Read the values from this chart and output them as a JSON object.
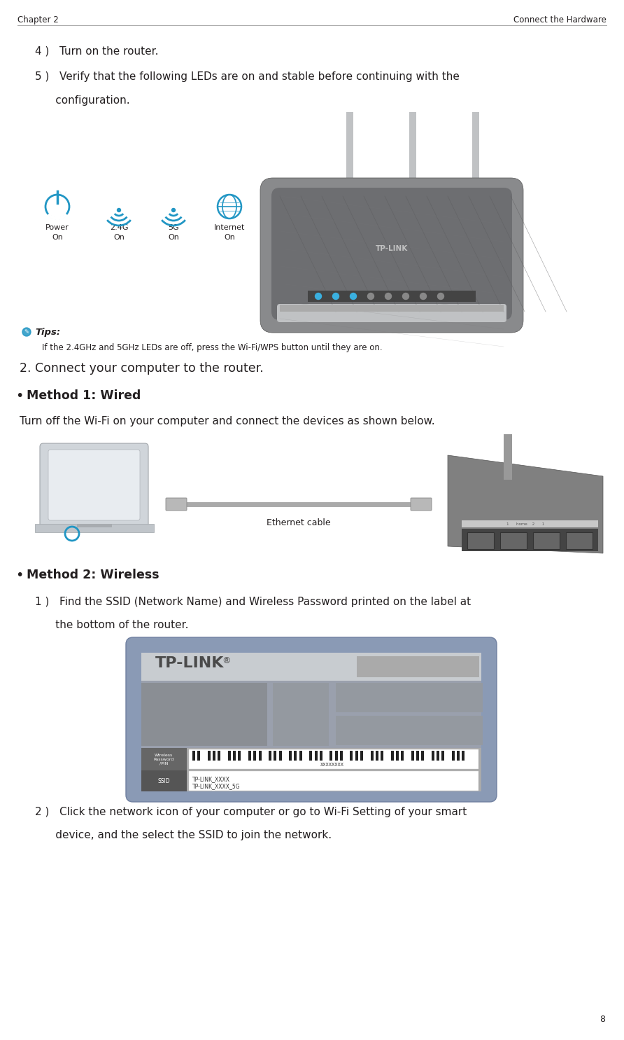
{
  "page_width": 8.92,
  "page_height": 14.85,
  "bg_color": "#ffffff",
  "header_left": "Chapter 2",
  "header_right": "Connect the Hardware",
  "page_number": "8",
  "text_color": "#231f20",
  "blue_color": "#2196c4",
  "gray_medium": "#7f8284",
  "gray_dark": "#58595b",
  "gray_light": "#bbbbbb",
  "step4_text": "4 )   Turn on the router.",
  "step5_line1": "5 )   Verify that the following LEDs are on and stable before continuing with the",
  "step5_line2": "      configuration.",
  "tips_label": "Tips:",
  "tips_text": "If the 2.4GHz and 5GHz LEDs are off, press the Wi-Fi/WPS button until they are on.",
  "section2_text": "2. Connect your computer to the router.",
  "method1_text": "Method 1: Wired",
  "method1_desc": "Turn off the Wi-Fi on your computer and connect the devices as shown below.",
  "ethernet_label": "Ethernet cable",
  "method2_text": "Method 2: Wireless",
  "step1_line1": "1 )   Find the SSID (Network Name) and Wireless Password printed on the label at",
  "step1_line2": "      the bottom of the router.",
  "step2_line1": "2 )   Click the network icon of your computer or go to Wi-Fi Setting of your smart",
  "step2_line2": "      device, and the select the SSID to join the network.",
  "wireless_label": "Wireless\nPassword\n/PIN",
  "ssid_label": "SSID",
  "ssid_text1": "TP-LINK_XXXX",
  "ssid_text2": "TP-LINK_XXXX_5G",
  "barcode_text": "XXXXXXXX",
  "tplink_logo": "TP-LINK",
  "tplink_reg": "®"
}
